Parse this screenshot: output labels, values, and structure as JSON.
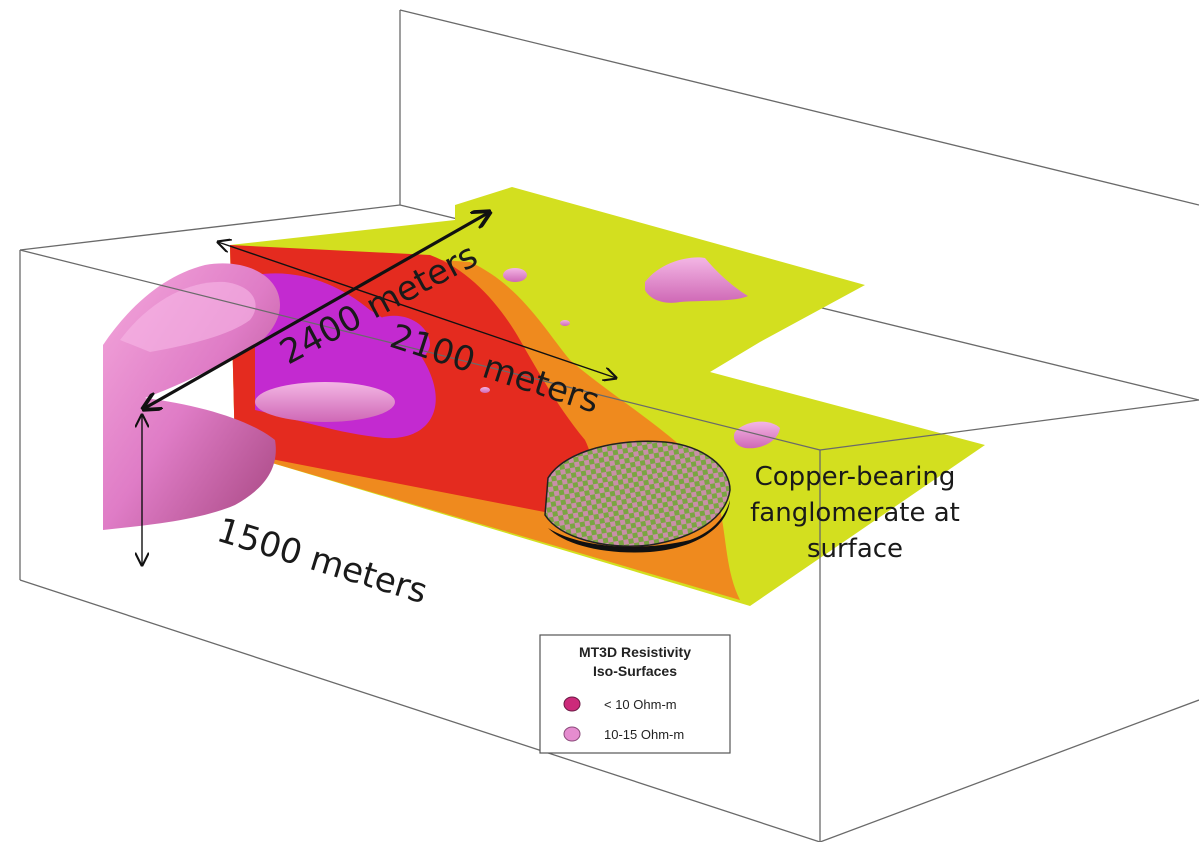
{
  "labels": {
    "length_2400": "2400 meters",
    "length_2100": "2100 meters",
    "depth_1500": "1500 meters",
    "copper_line1": "Copper-bearing",
    "copper_line2": "fanglomerate at",
    "copper_line3": "surface"
  },
  "legend": {
    "title_line1": "MT3D Resistivity",
    "title_line2": "Iso-Surfaces",
    "items": [
      {
        "label": "< 10 Ohm-m",
        "color": "#cc2a7a"
      },
      {
        "label": "10-15 Ohm-m",
        "color": "#e58ccf"
      }
    ]
  },
  "colors": {
    "low_resistivity": "#e02020",
    "mid_resistivity": "#f08c1c",
    "high_resistivity": "#d9e21c",
    "isosurface": "#e07ec8",
    "isosurface_core": "#c424c9",
    "fanglomerate": "#6f9a3a"
  }
}
